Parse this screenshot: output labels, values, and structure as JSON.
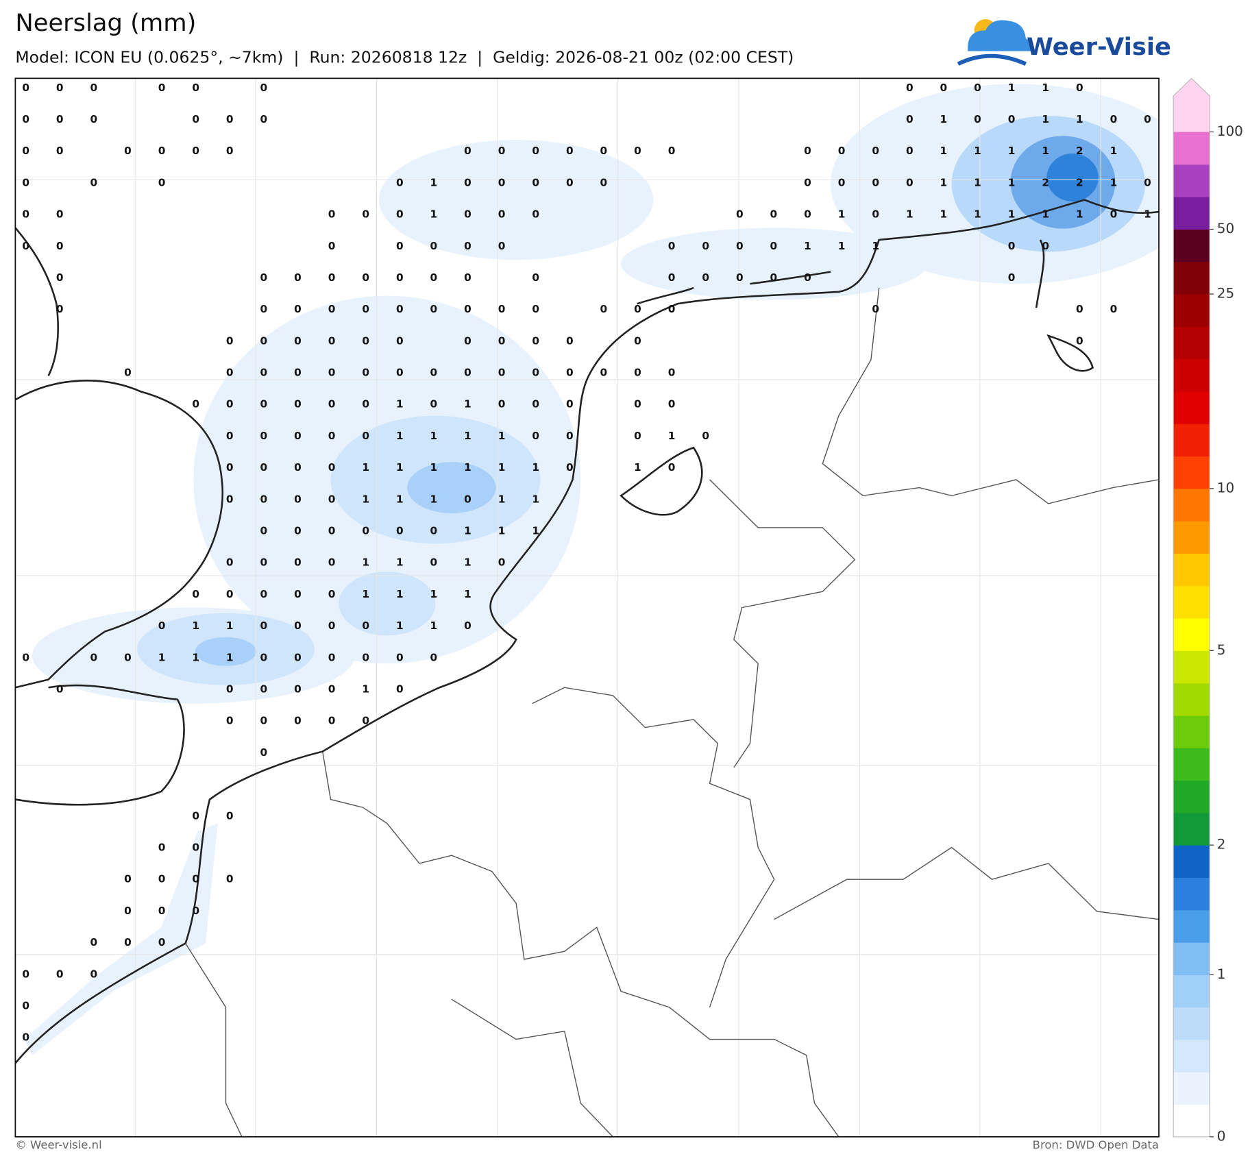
{
  "header": {
    "title": "Neerslag (mm)",
    "subtitle": "Model: ICON EU (0.0625°, ~7km)  |  Run: 20260818 12z  |  Geldig: 2026-08-21 00z (02:00 CEST)",
    "logo": "Weer-Visie"
  },
  "map": {
    "grid": [
      [
        0,
        0,
        0,
        null,
        0,
        0,
        null,
        0,
        null,
        null,
        null,
        null,
        null,
        null,
        null,
        null,
        null,
        null,
        null,
        null,
        null,
        null,
        null,
        null,
        null,
        null,
        0,
        0,
        0,
        1,
        1,
        0
      ],
      [
        0,
        0,
        0,
        null,
        null,
        0,
        0,
        0,
        null,
        null,
        null,
        null,
        null,
        null,
        null,
        null,
        null,
        null,
        null,
        null,
        null,
        null,
        null,
        null,
        null,
        null,
        0,
        1,
        0,
        0,
        1,
        1,
        0,
        0
      ],
      [
        0,
        0,
        null,
        0,
        0,
        0,
        0,
        null,
        null,
        null,
        null,
        null,
        null,
        0,
        0,
        0,
        0,
        0,
        0,
        0,
        null,
        null,
        null,
        0,
        0,
        0,
        0,
        1,
        1,
        1,
        1,
        2,
        1
      ],
      [
        0,
        null,
        0,
        null,
        0,
        null,
        null,
        null,
        null,
        null,
        null,
        0,
        1,
        0,
        0,
        0,
        0,
        0,
        null,
        null,
        null,
        null,
        null,
        0,
        0,
        0,
        0,
        1,
        1,
        1,
        2,
        2,
        1,
        0
      ],
      [
        0,
        0,
        null,
        null,
        null,
        null,
        null,
        null,
        null,
        0,
        0,
        0,
        1,
        0,
        0,
        0,
        null,
        null,
        null,
        null,
        null,
        0,
        0,
        0,
        1,
        0,
        1,
        1,
        1,
        1,
        1,
        1,
        0,
        1
      ],
      [
        0,
        0,
        null,
        null,
        null,
        null,
        null,
        null,
        null,
        0,
        null,
        0,
        0,
        0,
        0,
        null,
        null,
        null,
        null,
        0,
        0,
        0,
        0,
        1,
        1,
        1,
        null,
        null,
        null,
        0,
        0
      ],
      [
        null,
        0,
        null,
        null,
        null,
        null,
        null,
        0,
        0,
        0,
        0,
        0,
        0,
        0,
        null,
        0,
        null,
        null,
        null,
        0,
        0,
        0,
        0,
        0,
        null,
        null,
        null,
        null,
        null,
        0
      ],
      [
        null,
        0,
        null,
        null,
        null,
        null,
        null,
        0,
        0,
        0,
        0,
        0,
        0,
        0,
        0,
        0,
        null,
        0,
        0,
        0,
        null,
        null,
        null,
        null,
        null,
        0,
        null,
        null,
        null,
        null,
        null,
        0,
        0
      ],
      [
        null,
        null,
        null,
        null,
        null,
        null,
        0,
        0,
        0,
        0,
        0,
        0,
        null,
        0,
        0,
        0,
        0,
        null,
        0,
        null,
        null,
        null,
        null,
        null,
        null,
        null,
        null,
        null,
        null,
        null,
        null,
        0
      ],
      [
        null,
        null,
        null,
        0,
        null,
        null,
        0,
        0,
        0,
        0,
        0,
        0,
        0,
        0,
        0,
        0,
        0,
        0,
        0,
        0
      ],
      [
        null,
        null,
        null,
        null,
        null,
        0,
        0,
        0,
        0,
        0,
        0,
        1,
        0,
        1,
        0,
        0,
        0,
        null,
        0,
        0
      ],
      [
        null,
        null,
        null,
        null,
        null,
        null,
        0,
        0,
        0,
        0,
        0,
        1,
        1,
        1,
        1,
        0,
        0,
        null,
        0,
        1,
        0
      ],
      [
        null,
        null,
        null,
        null,
        null,
        null,
        0,
        0,
        0,
        0,
        1,
        1,
        1,
        1,
        1,
        1,
        0,
        null,
        1,
        0
      ],
      [
        null,
        null,
        null,
        null,
        null,
        null,
        0,
        0,
        0,
        0,
        1,
        1,
        1,
        0,
        1,
        1
      ],
      [
        null,
        null,
        null,
        null,
        null,
        null,
        null,
        0,
        0,
        0,
        0,
        0,
        0,
        1,
        1,
        1
      ],
      [
        null,
        null,
        null,
        null,
        null,
        null,
        0,
        0,
        0,
        0,
        1,
        1,
        0,
        1,
        0
      ],
      [
        null,
        null,
        null,
        null,
        null,
        0,
        0,
        0,
        0,
        0,
        1,
        1,
        1,
        1
      ],
      [
        null,
        null,
        null,
        null,
        0,
        1,
        1,
        0,
        0,
        0,
        0,
        1,
        1,
        0
      ],
      [
        0,
        null,
        0,
        0,
        1,
        1,
        1,
        0,
        0,
        0,
        0,
        0,
        0
      ],
      [
        null,
        0,
        null,
        null,
        null,
        null,
        0,
        0,
        0,
        0,
        1,
        0
      ],
      [
        null,
        null,
        null,
        null,
        null,
        null,
        0,
        0,
        0,
        0,
        0
      ],
      [
        null,
        null,
        null,
        null,
        null,
        null,
        null,
        0
      ],
      [],
      [
        null,
        null,
        null,
        null,
        null,
        0,
        0
      ],
      [
        null,
        null,
        null,
        null,
        0,
        0
      ],
      [
        null,
        null,
        null,
        0,
        0,
        0,
        0
      ],
      [
        null,
        null,
        null,
        0,
        0,
        0
      ],
      [
        null,
        null,
        0,
        0,
        0
      ],
      [
        0,
        0,
        0
      ],
      [
        0
      ],
      [
        0
      ]
    ]
  },
  "colorbar": {
    "ticks": [
      0,
      1,
      2,
      5,
      10,
      25,
      50,
      100
    ],
    "colors": [
      "#ffffff",
      "#eaf3fd",
      "#d4e8fb",
      "#bcdcfa",
      "#a0d0f8",
      "#7fbdf3",
      "#4a9de8",
      "#2a80dc",
      "#0f64c8",
      "#129a38",
      "#21a826",
      "#3cbc1a",
      "#6ccc0c",
      "#a0da00",
      "#cde800",
      "#ffff00",
      "#ffe000",
      "#ffc800",
      "#ff9900",
      "#ff7700",
      "#ff4000",
      "#f02000",
      "#e00000",
      "#cc0000",
      "#b40000",
      "#9c0000",
      "#820008",
      "#5c0020",
      "#7a1ea0",
      "#a840c0",
      "#e870d0",
      "#ffd4f0"
    ]
  },
  "footer": {
    "copyright": "© Weer-visie.nl",
    "source": "Bron: DWD Open Data"
  }
}
